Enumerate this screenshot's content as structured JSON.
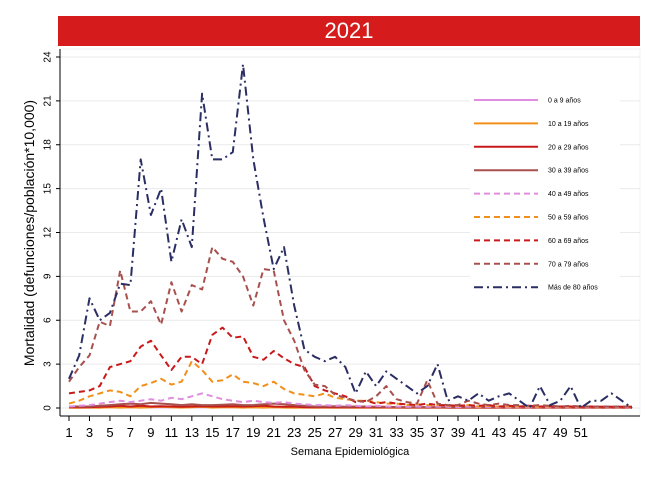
{
  "chart_data": {
    "type": "line",
    "title": "2021",
    "xlabel": "Semana Epidemiológica",
    "ylabel": "Mortalidad (defunciones/población*10,000)",
    "ylim": [
      0,
      24
    ],
    "yticks": [
      "0",
      "3",
      "6",
      "9",
      "12",
      "15",
      "18",
      "21",
      "24"
    ],
    "xlim": [
      1,
      56
    ],
    "xticks": [
      "1",
      "3",
      "5",
      "7",
      "9",
      "11",
      "13",
      "15",
      "17",
      "19",
      "21",
      "23",
      "25",
      "27",
      "29",
      "31",
      "33",
      "35",
      "37",
      "39",
      "41",
      "43",
      "45",
      "47",
      "49",
      "51"
    ],
    "grid": "horizontal",
    "legend_position": "top-right",
    "x": [
      1,
      2,
      3,
      4,
      5,
      6,
      7,
      8,
      9,
      10,
      11,
      12,
      13,
      14,
      15,
      16,
      17,
      18,
      19,
      20,
      21,
      22,
      23,
      24,
      25,
      26,
      27,
      28,
      29,
      30,
      31,
      32,
      33,
      34,
      35,
      36,
      37,
      38,
      39,
      40,
      41,
      42,
      43,
      44,
      45,
      46,
      47,
      48,
      49,
      50,
      51,
      52,
      53,
      54,
      55,
      56
    ],
    "series": [
      {
        "name": "0 a 9 años",
        "color": "#e08ee0",
        "dash": "solid",
        "values": [
          0.05,
          0.05,
          0.05,
          0.05,
          0.05,
          0.05,
          0.05,
          0.05,
          0.05,
          0.05,
          0.05,
          0.05,
          0.05,
          0.05,
          0.05,
          0.05,
          0.05,
          0.05,
          0.05,
          0.05,
          0.05,
          0.05,
          0.05,
          0.05,
          0.05,
          0.05,
          0.05,
          0.05,
          0.05,
          0.05,
          0.05,
          0.05,
          0.05,
          0.05,
          0.05,
          0.05,
          0.05,
          0.05,
          0.05,
          0.05,
          0.05,
          0.05,
          0.05,
          0.05,
          0.05,
          0.05,
          0.05,
          0.05,
          0.05,
          0.05,
          0.05,
          0.05,
          0.05,
          0.05,
          0.05,
          0.05
        ]
      },
      {
        "name": "10 a 19 años",
        "color": "#f0901a",
        "dash": "solid",
        "values": [
          0.02,
          0.02,
          0.03,
          0.02,
          0.05,
          0.03,
          0.05,
          0.03,
          0.05,
          0.08,
          0.05,
          0.03,
          0.05,
          0.08,
          0.03,
          0.05,
          0.05,
          0.03,
          0.05,
          0.03,
          0.05,
          0.03,
          0.02,
          0.03,
          0.02,
          0.03,
          0.02,
          0.03,
          0.02,
          0.03,
          0.02,
          0.03,
          0.02,
          0.03,
          0.02,
          0.03,
          0.02,
          0.03,
          0.02,
          0.03,
          0.02,
          0.03,
          0.02,
          0.03,
          0.02,
          0.03,
          0.02,
          0.03,
          0.02,
          0.03,
          0.02,
          0.03,
          0.02,
          0.03,
          0.02,
          0.03
        ]
      },
      {
        "name": "20 a 29 años",
        "color": "#c81a1a",
        "dash": "solid",
        "values": [
          0.05,
          0.05,
          0.05,
          0.08,
          0.1,
          0.15,
          0.1,
          0.15,
          0.1,
          0.12,
          0.1,
          0.08,
          0.1,
          0.12,
          0.1,
          0.1,
          0.12,
          0.1,
          0.12,
          0.15,
          0.1,
          0.08,
          0.1,
          0.05,
          0.05,
          0.05,
          0.05,
          0.04,
          0.05,
          0.04,
          0.05,
          0.04,
          0.04,
          0.03,
          0.04,
          0.03,
          0.04,
          0.03,
          0.03,
          0.03,
          0.03,
          0.03,
          0.03,
          0.03,
          0.03,
          0.03,
          0.03,
          0.03,
          0.03,
          0.03,
          0.03,
          0.03,
          0.03,
          0.03,
          0.03,
          0.03
        ]
      },
      {
        "name": "30 a 39 años",
        "color": "#a8504e",
        "dash": "solid",
        "values": [
          0.1,
          0.1,
          0.1,
          0.15,
          0.2,
          0.25,
          0.3,
          0.25,
          0.35,
          0.3,
          0.25,
          0.2,
          0.25,
          0.2,
          0.2,
          0.22,
          0.25,
          0.2,
          0.2,
          0.25,
          0.3,
          0.25,
          0.2,
          0.15,
          0.1,
          0.1,
          0.12,
          0.08,
          0.1,
          0.1,
          0.08,
          0.08,
          0.06,
          0.06,
          0.05,
          0.06,
          0.05,
          0.05,
          0.05,
          0.04,
          0.05,
          0.04,
          0.05,
          0.04,
          0.04,
          0.04,
          0.04,
          0.04,
          0.04,
          0.04,
          0.04,
          0.04,
          0.04,
          0.04,
          0.04,
          0.04
        ]
      },
      {
        "name": "40 a 49 años",
        "color": "#e08ee0",
        "dash": "dash",
        "values": [
          0.1,
          0.15,
          0.2,
          0.3,
          0.4,
          0.5,
          0.4,
          0.5,
          0.6,
          0.5,
          0.7,
          0.6,
          0.8,
          1.0,
          0.8,
          0.6,
          0.5,
          0.4,
          0.5,
          0.4,
          0.35,
          0.4,
          0.3,
          0.25,
          0.2,
          0.2,
          0.15,
          0.2,
          0.15,
          0.1,
          0.15,
          0.1,
          0.1,
          0.08,
          0.1,
          0.08,
          0.1,
          0.08,
          0.05,
          0.1,
          0.05,
          0.08,
          0.05,
          0.05,
          0.05,
          0.05,
          0.05,
          0.05,
          0.05,
          0.05,
          0.05,
          0.05,
          0.05,
          0.05,
          0.05,
          0.05
        ]
      },
      {
        "name": "50 a 59 años",
        "color": "#f0901a",
        "dash": "dash",
        "values": [
          0.3,
          0.5,
          0.8,
          1.0,
          1.2,
          1.1,
          0.8,
          1.5,
          1.7,
          2.0,
          1.6,
          1.8,
          3.2,
          2.6,
          1.8,
          1.9,
          2.3,
          1.8,
          1.7,
          1.5,
          1.8,
          1.3,
          1.0,
          0.9,
          0.8,
          1.0,
          0.7,
          0.6,
          0.5,
          0.5,
          0.4,
          0.3,
          0.3,
          0.2,
          0.25,
          0.2,
          0.2,
          0.15,
          0.15,
          0.2,
          0.1,
          0.15,
          0.1,
          0.1,
          0.1,
          0.1,
          0.08,
          0.1,
          0.08,
          0.08,
          0.08,
          0.08,
          0.08,
          0.08,
          0.08,
          0.08
        ]
      },
      {
        "name": "60 a 69 años",
        "color": "#c81a1a",
        "dash": "dash",
        "values": [
          1.0,
          1.1,
          1.2,
          1.5,
          2.8,
          3.0,
          3.2,
          4.2,
          4.6,
          3.6,
          2.6,
          3.5,
          3.5,
          3.0,
          5.0,
          5.5,
          4.8,
          4.9,
          3.5,
          3.3,
          3.9,
          3.4,
          3.0,
          2.8,
          1.5,
          1.2,
          1.0,
          0.8,
          0.4,
          0.5,
          0.3,
          0.4,
          0.3,
          0.25,
          0.2,
          0.3,
          0.2,
          0.2,
          0.15,
          0.2,
          0.15,
          0.2,
          0.1,
          0.15,
          0.1,
          0.15,
          0.1,
          0.12,
          0.1,
          0.1,
          0.08,
          0.1,
          0.08,
          0.08,
          0.08,
          0.08
        ]
      },
      {
        "name": "70 a 79 años",
        "color": "#a8504e",
        "dash": "dash",
        "values": [
          1.8,
          2.8,
          3.6,
          5.9,
          5.6,
          9.4,
          6.6,
          6.6,
          7.3,
          5.7,
          8.6,
          6.6,
          8.4,
          8.1,
          11.0,
          10.2,
          10.0,
          9.0,
          7.0,
          9.5,
          9.4,
          6.0,
          4.6,
          2.6,
          1.6,
          1.5,
          0.9,
          0.7,
          0.5,
          0.4,
          0.8,
          1.5,
          0.6,
          0.4,
          0.3,
          1.9,
          0.3,
          0.2,
          0.2,
          0.5,
          0.3,
          0.2,
          0.3,
          0.2,
          0.2,
          0.15,
          0.2,
          0.15,
          0.1,
          0.15,
          0.1,
          0.1,
          0.1,
          0.1,
          0.1,
          0.1
        ]
      },
      {
        "name": "Más de 80 años",
        "color": "#2a2e63",
        "dash": "dashdot",
        "values": [
          2.0,
          3.6,
          7.5,
          6.0,
          6.5,
          8.5,
          8.4,
          17.0,
          13.2,
          15.0,
          10.0,
          12.9,
          11.0,
          21.5,
          17.0,
          17.0,
          17.5,
          23.5,
          17.0,
          13.0,
          9.5,
          11.0,
          7.0,
          4.0,
          3.5,
          3.2,
          3.5,
          2.8,
          1.0,
          2.5,
          1.5,
          2.5,
          2.0,
          1.5,
          1.0,
          1.5,
          3.0,
          0.5,
          0.8,
          0.5,
          1.0,
          0.5,
          0.8,
          1.0,
          0.5,
          0.0,
          1.5,
          0.2,
          0.5,
          1.5,
          0.0,
          0.5,
          0.5,
          1.0,
          0.5,
          0.0
        ]
      }
    ]
  }
}
